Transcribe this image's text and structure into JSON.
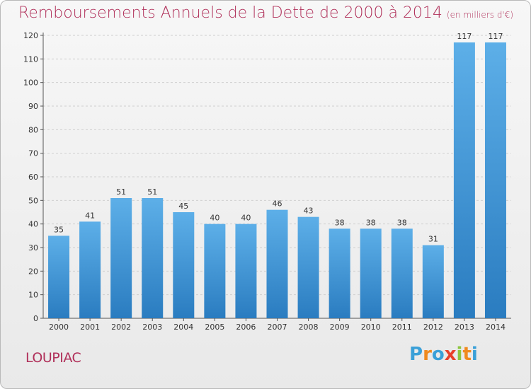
{
  "title": "Remboursements Annuels de la Dette de 2000 à 2014",
  "subtitle": "(en milliers d'€)",
  "commune": "LOUPIAC",
  "brand": {
    "letters": [
      "P",
      "r",
      "o",
      "x",
      "i",
      "t",
      "i"
    ],
    "colors": [
      "#3aa0d8",
      "#f08a1e",
      "#3aa0d8",
      "#e8402a",
      "#8cc63f",
      "#f08a1e",
      "#3aa0d8"
    ]
  },
  "colors": {
    "bar_light": "#5dafe8",
    "bar_dark": "#2a7cc0",
    "title": "#b0305a",
    "grid": "#cfcfcf"
  },
  "chart_data": {
    "type": "bar",
    "categories": [
      "2000",
      "2001",
      "2002",
      "2003",
      "2004",
      "2005",
      "2006",
      "2007",
      "2008",
      "2009",
      "2010",
      "2011",
      "2012",
      "2013",
      "2014"
    ],
    "values": [
      35,
      41,
      51,
      51,
      45,
      40,
      40,
      46,
      43,
      38,
      38,
      38,
      31,
      117,
      117
    ],
    "title": "Remboursements Annuels de la Dette de 2000 à 2014",
    "subtitle": "(en milliers d'€)",
    "xlabel": "",
    "ylabel": "",
    "ylim": [
      0,
      120
    ],
    "yticks": [
      0,
      10,
      20,
      30,
      40,
      50,
      60,
      70,
      80,
      90,
      100,
      110,
      120
    ],
    "grid": true
  }
}
